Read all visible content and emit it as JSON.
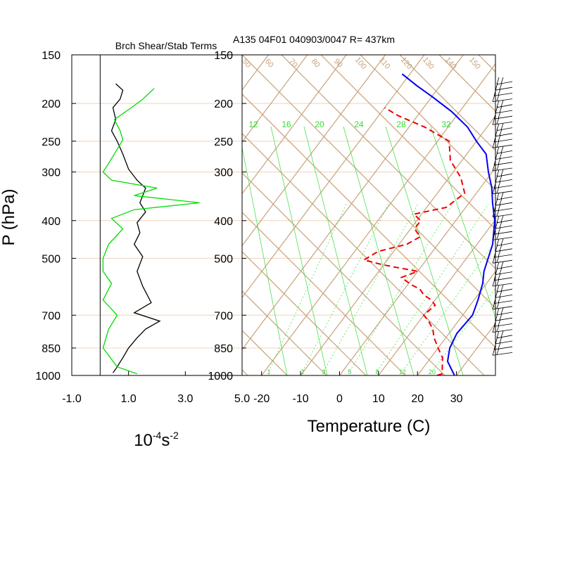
{
  "chart_data": [
    {
      "type": "line",
      "title": "Brch Shear/Stab Terms",
      "xlabel": "10",
      "xlabel_exp": "-4",
      "xlabel_unit": "s",
      "xlabel_unit_exp": "-2",
      "ylabel": "P (hPa)",
      "ylim": [
        1000,
        150
      ],
      "y_scale": "log",
      "xlim": [
        -1.0,
        5.0
      ],
      "xticks": [
        "-1.0",
        "1.0",
        "3.0",
        "5.0"
      ],
      "yticks": [
        "150",
        "200",
        "250",
        "300",
        "400",
        "500",
        "700",
        "850",
        "1000"
      ],
      "colors": {
        "shear": "#000000",
        "stability": "#00dd00",
        "zero_line": "#000000"
      },
      "series": [
        {
          "role": "black",
          "points": [
            [
              0.55,
              178
            ],
            [
              0.8,
              185
            ],
            [
              0.7,
              195
            ],
            [
              0.45,
              205
            ],
            [
              0.55,
              220
            ],
            [
              0.4,
              235
            ],
            [
              0.6,
              250
            ],
            [
              0.8,
              270
            ],
            [
              1.0,
              295
            ],
            [
              1.3,
              315
            ],
            [
              1.6,
              330
            ],
            [
              1.5,
              345
            ],
            [
              1.4,
              360
            ],
            [
              1.6,
              380
            ],
            [
              1.3,
              405
            ],
            [
              1.4,
              430
            ],
            [
              1.2,
              460
            ],
            [
              1.5,
              495
            ],
            [
              1.3,
              540
            ],
            [
              1.5,
              590
            ],
            [
              1.8,
              650
            ],
            [
              1.2,
              690
            ],
            [
              2.1,
              725
            ],
            [
              1.6,
              760
            ],
            [
              1.3,
              800
            ],
            [
              1.0,
              850
            ],
            [
              0.8,
              900
            ],
            [
              0.6,
              950
            ],
            [
              0.45,
              985
            ]
          ]
        },
        {
          "role": "green",
          "points": [
            [
              1.9,
              183
            ],
            [
              1.5,
              195
            ],
            [
              1.1,
              205
            ],
            [
              0.5,
              220
            ],
            [
              0.7,
              235
            ],
            [
              0.8,
              248
            ],
            [
              0.3,
              285
            ],
            [
              0.1,
              300
            ],
            [
              0.4,
              315
            ],
            [
              2.0,
              330
            ],
            [
              1.2,
              345
            ],
            [
              3.5,
              360
            ],
            [
              1.2,
              375
            ],
            [
              0.4,
              395
            ],
            [
              0.8,
              420
            ],
            [
              0.3,
              460
            ],
            [
              0.1,
              500
            ],
            [
              0.1,
              540
            ],
            [
              0.4,
              580
            ],
            [
              0.1,
              640
            ],
            [
              0.6,
              700
            ],
            [
              0.3,
              760
            ],
            [
              0.1,
              850
            ],
            [
              0.6,
              950
            ],
            [
              1.3,
              990
            ]
          ]
        }
      ]
    },
    {
      "type": "skew-t",
      "title": "A135 04F01 040903/0047 R= 437km",
      "xlabel": "Temperature (C)",
      "xlim": [
        -25,
        40
      ],
      "ylim": [
        1000,
        150
      ],
      "y_scale": "log",
      "xticks": [
        "-20",
        "-10",
        "0",
        "10",
        "20",
        "30"
      ],
      "yticks": [
        "150",
        "200",
        "250",
        "300",
        "400",
        "500",
        "700",
        "850",
        "1000"
      ],
      "mixing_ratio_labels_top": [
        "12",
        "16",
        "20",
        "24",
        "28",
        "32"
      ],
      "mixing_ratio_labels_bottom": [
        "1",
        "2",
        "3",
        "5",
        "8",
        "12",
        "20"
      ],
      "isotherm_labels": [
        "50",
        "60",
        "70",
        "80",
        "90",
        "100",
        "110",
        "120",
        "130",
        "140",
        "150"
      ],
      "colors": {
        "temperature": "#0000ee",
        "dewpoint": "#ee0000",
        "grid": "#c8a27a",
        "isobar": "#f0dcc8",
        "mixing_ratio": "#33dd33",
        "wind_barbs": "#000000"
      },
      "temperature": [
        [
          29.5,
          1000
        ],
        [
          25,
          920
        ],
        [
          23,
          850
        ],
        [
          22,
          780
        ],
        [
          22.5,
          700
        ],
        [
          21,
          640
        ],
        [
          19,
          580
        ],
        [
          17,
          540
        ],
        [
          14,
          460
        ],
        [
          10,
          400
        ],
        [
          6,
          360
        ],
        [
          3,
          330
        ],
        [
          -1,
          300
        ],
        [
          -5,
          270
        ],
        [
          -10,
          250
        ],
        [
          -15,
          230
        ],
        [
          -22,
          210
        ],
        [
          -30,
          192
        ],
        [
          -36,
          180
        ],
        [
          -42,
          168
        ]
      ],
      "dewpoint": [
        [
          25,
          1000
        ],
        [
          26,
          990
        ],
        [
          23,
          900
        ],
        [
          20,
          850
        ],
        [
          17,
          800
        ],
        [
          15,
          760
        ],
        [
          12,
          720
        ],
        [
          10,
          700
        ],
        [
          11,
          660
        ],
        [
          9,
          640
        ],
        [
          6,
          620
        ],
        [
          4,
          600
        ],
        [
          1,
          585
        ],
        [
          -3,
          560
        ],
        [
          0,
          540
        ],
        [
          -10,
          520
        ],
        [
          -16,
          505
        ],
        [
          -14,
          480
        ],
        [
          -8,
          460
        ],
        [
          -6,
          440
        ],
        [
          -9,
          420
        ],
        [
          -9,
          400
        ],
        [
          -12,
          385
        ],
        [
          -5,
          370
        ],
        [
          -3,
          340
        ],
        [
          -7,
          310
        ],
        [
          -13,
          280
        ],
        [
          -17,
          250
        ],
        [
          -26,
          230
        ],
        [
          -35,
          215
        ],
        [
          -40,
          205
        ]
      ],
      "wind_barb_region": "right"
    }
  ]
}
